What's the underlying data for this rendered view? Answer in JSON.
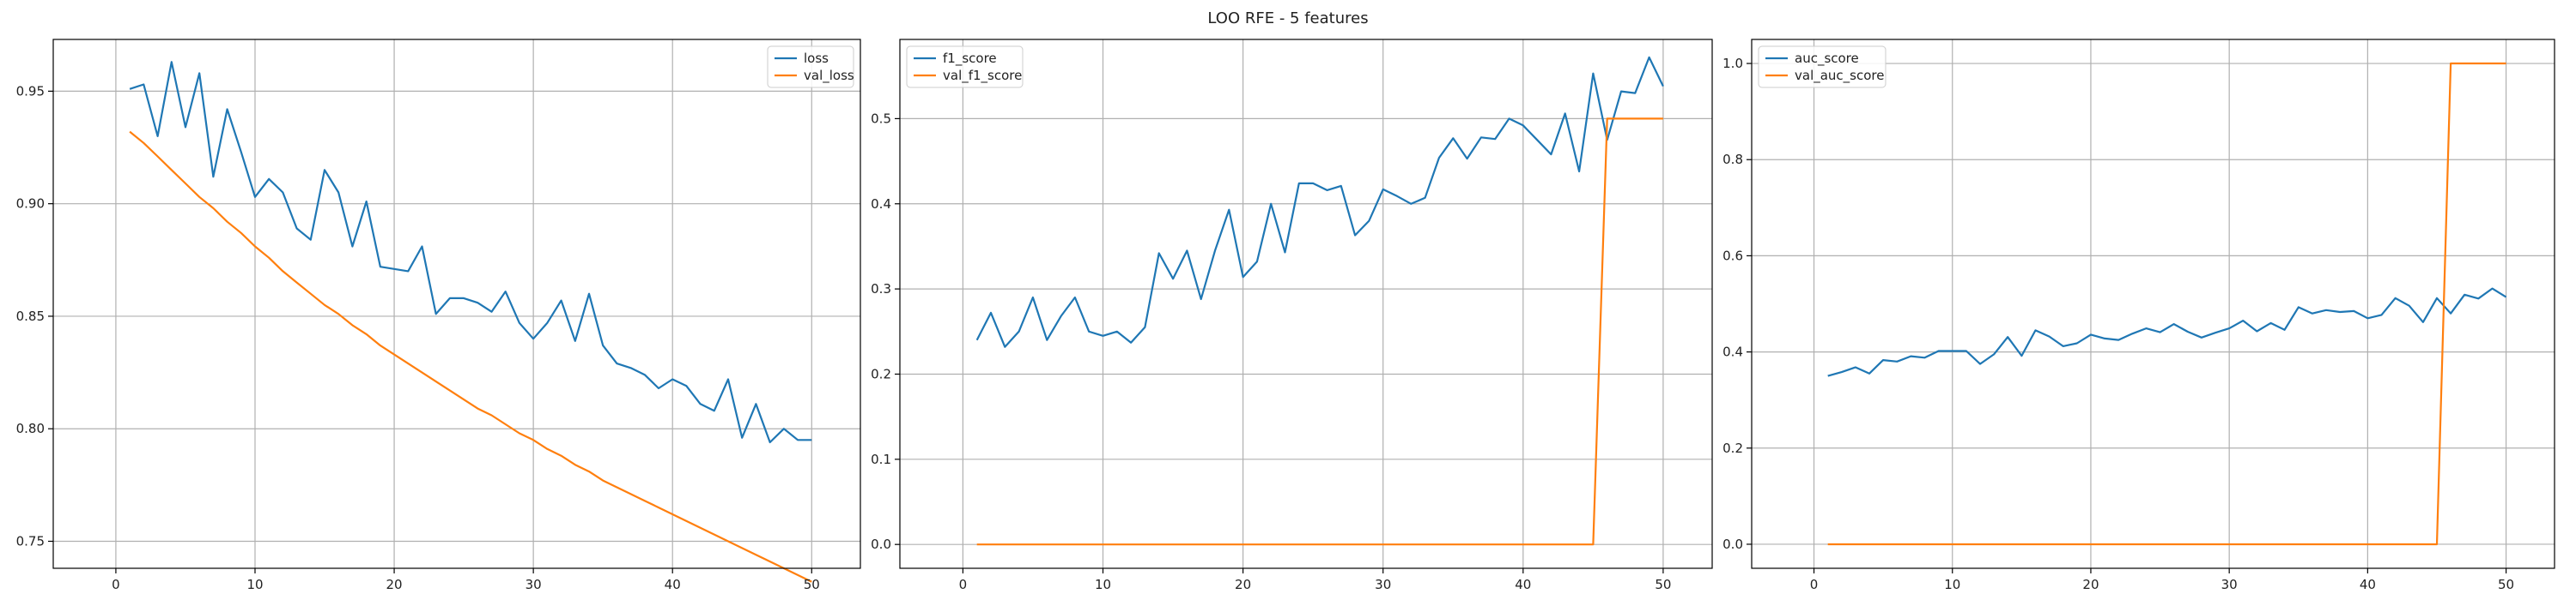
{
  "figure_title": "LOO RFE - 5 features",
  "colors": {
    "series1": "#1f77b4",
    "series2": "#ff7f0e",
    "grid": "#b0b0b0",
    "axis": "#000000"
  },
  "chart_data": [
    {
      "type": "line",
      "title": "",
      "xlabel": "",
      "ylabel": "",
      "xlim": [
        -4.5,
        53.5
      ],
      "ylim": [
        0.738,
        0.973
      ],
      "xticks": [
        0,
        10,
        20,
        30,
        40,
        50
      ],
      "yticks": [
        0.75,
        0.8,
        0.85,
        0.9,
        0.95
      ],
      "ytick_labels": [
        "0.75",
        "0.80",
        "0.85",
        "0.90",
        "0.95"
      ],
      "grid": true,
      "legend": "upper right",
      "x": [
        1,
        2,
        3,
        4,
        5,
        6,
        7,
        8,
        9,
        10,
        11,
        12,
        13,
        14,
        15,
        16,
        17,
        18,
        19,
        20,
        21,
        22,
        23,
        24,
        25,
        26,
        27,
        28,
        29,
        30,
        31,
        32,
        33,
        34,
        35,
        36,
        37,
        38,
        39,
        40,
        41,
        42,
        43,
        44,
        45,
        46,
        47,
        48,
        49,
        50
      ],
      "series": [
        {
          "name": "loss",
          "values": [
            0.951,
            0.953,
            0.93,
            0.963,
            0.934,
            0.958,
            0.912,
            0.942,
            0.923,
            0.903,
            0.911,
            0.905,
            0.889,
            0.884,
            0.915,
            0.905,
            0.881,
            0.901,
            0.872,
            0.871,
            0.87,
            0.881,
            0.851,
            0.858,
            0.858,
            0.856,
            0.852,
            0.861,
            0.847,
            0.84,
            0.847,
            0.857,
            0.839,
            0.86,
            0.837,
            0.829,
            0.827,
            0.824,
            0.818,
            0.822,
            0.819,
            0.811,
            0.808,
            0.822,
            0.796,
            0.811,
            0.794,
            0.8,
            0.795,
            0.795
          ]
        },
        {
          "name": "val_loss",
          "values": [
            0.932,
            0.927,
            0.921,
            0.915,
            0.909,
            0.903,
            0.898,
            0.892,
            0.887,
            0.881,
            0.876,
            0.87,
            0.865,
            0.86,
            0.855,
            0.851,
            0.846,
            0.842,
            0.837,
            0.833,
            0.829,
            0.825,
            0.821,
            0.817,
            0.813,
            0.809,
            0.806,
            0.802,
            0.798,
            0.795,
            0.791,
            0.788,
            0.784,
            0.781,
            0.777,
            0.774,
            0.771,
            0.768,
            0.765,
            0.762,
            0.759,
            0.756,
            0.753,
            0.75,
            0.747,
            0.744,
            0.741,
            0.738,
            0.735,
            0.732
          ]
        }
      ]
    },
    {
      "type": "line",
      "title": "",
      "xlabel": "",
      "ylabel": "",
      "xlim": [
        -4.5,
        53.5
      ],
      "ylim": [
        -0.028,
        0.593
      ],
      "xticks": [
        0,
        10,
        20,
        30,
        40,
        50
      ],
      "yticks": [
        0.0,
        0.1,
        0.2,
        0.3,
        0.4,
        0.5
      ],
      "ytick_labels": [
        "0.0",
        "0.1",
        "0.2",
        "0.3",
        "0.4",
        "0.5"
      ],
      "grid": true,
      "legend": "upper left",
      "x": [
        1,
        2,
        3,
        4,
        5,
        6,
        7,
        8,
        9,
        10,
        11,
        12,
        13,
        14,
        15,
        16,
        17,
        18,
        19,
        20,
        21,
        22,
        23,
        24,
        25,
        26,
        27,
        28,
        29,
        30,
        31,
        32,
        33,
        34,
        35,
        36,
        37,
        38,
        39,
        40,
        41,
        42,
        43,
        44,
        45,
        46,
        47,
        48,
        49,
        50
      ],
      "series": [
        {
          "name": "f1_score",
          "values": [
            0.24,
            0.272,
            0.232,
            0.25,
            0.29,
            0.24,
            0.268,
            0.29,
            0.25,
            0.245,
            0.25,
            0.237,
            0.255,
            0.342,
            0.312,
            0.345,
            0.288,
            0.345,
            0.393,
            0.314,
            0.332,
            0.4,
            0.343,
            0.424,
            0.424,
            0.416,
            0.421,
            0.363,
            0.38,
            0.417,
            0.409,
            0.4,
            0.407,
            0.454,
            0.477,
            0.453,
            0.478,
            0.476,
            0.5,
            0.492,
            0.475,
            0.458,
            0.506,
            0.438,
            0.553,
            0.475,
            0.532,
            0.53,
            0.572,
            0.538
          ]
        },
        {
          "name": "val_f1_score",
          "values": [
            0,
            0,
            0,
            0,
            0,
            0,
            0,
            0,
            0,
            0,
            0,
            0,
            0,
            0,
            0,
            0,
            0,
            0,
            0,
            0,
            0,
            0,
            0,
            0,
            0,
            0,
            0,
            0,
            0,
            0,
            0,
            0,
            0,
            0,
            0,
            0,
            0,
            0,
            0,
            0,
            0,
            0,
            0,
            0,
            0,
            0.5,
            0.5,
            0.5,
            0.5,
            0.5
          ]
        }
      ]
    },
    {
      "type": "line",
      "title": "",
      "xlabel": "",
      "ylabel": "",
      "xlim": [
        -4.5,
        53.5
      ],
      "ylim": [
        -0.05,
        1.05
      ],
      "xticks": [
        0,
        10,
        20,
        30,
        40,
        50
      ],
      "yticks": [
        0.0,
        0.2,
        0.4,
        0.6,
        0.8,
        1.0
      ],
      "ytick_labels": [
        "0.0",
        "0.2",
        "0.4",
        "0.6",
        "0.8",
        "1.0"
      ],
      "grid": true,
      "legend": "upper left",
      "x": [
        1,
        2,
        3,
        4,
        5,
        6,
        7,
        8,
        9,
        10,
        11,
        12,
        13,
        14,
        15,
        16,
        17,
        18,
        19,
        20,
        21,
        22,
        23,
        24,
        25,
        26,
        27,
        28,
        29,
        30,
        31,
        32,
        33,
        34,
        35,
        36,
        37,
        38,
        39,
        40,
        41,
        42,
        43,
        44,
        45,
        46,
        47,
        48,
        49,
        50
      ],
      "series": [
        {
          "name": "auc_score",
          "values": [
            0.35,
            0.358,
            0.368,
            0.355,
            0.383,
            0.38,
            0.391,
            0.388,
            0.402,
            0.402,
            0.402,
            0.375,
            0.395,
            0.431,
            0.392,
            0.445,
            0.432,
            0.412,
            0.418,
            0.436,
            0.428,
            0.425,
            0.438,
            0.449,
            0.441,
            0.458,
            0.442,
            0.43,
            0.44,
            0.449,
            0.465,
            0.443,
            0.46,
            0.446,
            0.493,
            0.48,
            0.487,
            0.483,
            0.485,
            0.47,
            0.477,
            0.512,
            0.496,
            0.462,
            0.512,
            0.48,
            0.519,
            0.511,
            0.532,
            0.514
          ]
        },
        {
          "name": "val_auc_score",
          "values": [
            0,
            0,
            0,
            0,
            0,
            0,
            0,
            0,
            0,
            0,
            0,
            0,
            0,
            0,
            0,
            0,
            0,
            0,
            0,
            0,
            0,
            0,
            0,
            0,
            0,
            0,
            0,
            0,
            0,
            0,
            0,
            0,
            0,
            0,
            0,
            0,
            0,
            0,
            0,
            0,
            0,
            0,
            0,
            0,
            0,
            1,
            1,
            1,
            1,
            1
          ]
        }
      ]
    }
  ]
}
